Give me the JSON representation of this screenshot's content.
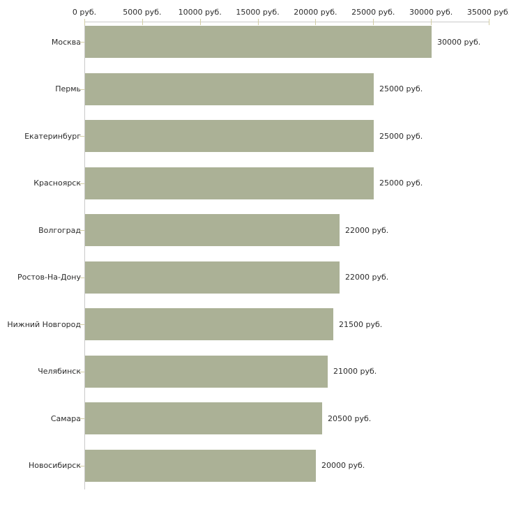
{
  "chart_data": {
    "type": "bar",
    "orientation": "horizontal",
    "title": "",
    "xlabel": "",
    "ylabel": "",
    "unit": "руб.",
    "categories": [
      "Москва",
      "Пермь",
      "Екатеринбург",
      "Красноярск",
      "Волгоград",
      "Ростов-На-Дону",
      "Нижний Новгород",
      "Челябинск",
      "Самара",
      "Новосибирск"
    ],
    "values": [
      30000,
      25000,
      25000,
      25000,
      22000,
      22000,
      21500,
      21000,
      20500,
      20000
    ],
    "value_labels": [
      "30000 руб.",
      "25000 руб.",
      "25000 руб.",
      "25000 руб.",
      "22000 руб.",
      "22000 руб.",
      "21500 руб.",
      "21000 руб.",
      "20500 руб.",
      "20000 руб."
    ],
    "x_tick_values": [
      0,
      5000,
      10000,
      15000,
      20000,
      25000,
      30000,
      35000
    ],
    "x_tick_labels": [
      "0 руб.",
      "5000 руб.",
      "10000 руб.",
      "15000 руб.",
      "20000 руб.",
      "25000 руб.",
      "30000 руб.",
      "35000 руб."
    ],
    "xlim": [
      0,
      35000
    ],
    "grid": false,
    "legend": null,
    "colors": {
      "bar": "#abb196",
      "axis": "#c9c9c9",
      "tick": "#d2cda4",
      "text": "#2b2b2b",
      "background": "#ffffff"
    }
  }
}
